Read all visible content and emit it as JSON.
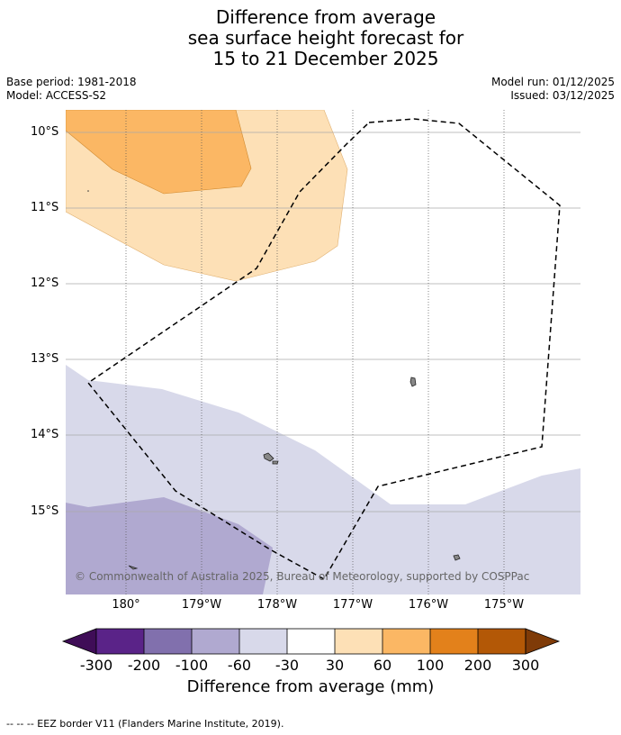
{
  "title": {
    "line1": "Difference from average",
    "line2": "sea surface height forecast for",
    "line3": "15 to 21 December 2025"
  },
  "meta": {
    "base_period": "Base period: 1981-2018",
    "model": "Model: ACCESS-S2",
    "model_run": "Model run: 01/12/2025",
    "issued": "Issued: 03/12/2025"
  },
  "map": {
    "lat_labels": [
      "10°S",
      "11°S",
      "12°S",
      "13°S",
      "14°S",
      "15°S"
    ],
    "lon_labels": [
      "180°",
      "179°W",
      "178°W",
      "177°W",
      "176°W",
      "175°W"
    ],
    "copyright": "© Commonwealth of Australia 2025, Bureau of Meteorology, supported by COSPPac",
    "colors": {
      "land": "#888888",
      "eez_line": "#000000",
      "gridline": "#999999"
    }
  },
  "colorbar": {
    "title": "Difference from average (mm)",
    "tick_labels": [
      "-300",
      "-200",
      "-100",
      "-60",
      "-30",
      "30",
      "60",
      "100",
      "200",
      "300"
    ],
    "colors": [
      "#3f0d57",
      "#5a2388",
      "#8170ad",
      "#b0a9d0",
      "#d8d9ea",
      "#ffffff",
      "#fde0b6",
      "#fbb764",
      "#e3811b",
      "#b35806",
      "#7f3b08"
    ]
  },
  "footnote": "--  --  -- EEZ border V11 (Flanders Marine Institute, 2019)."
}
